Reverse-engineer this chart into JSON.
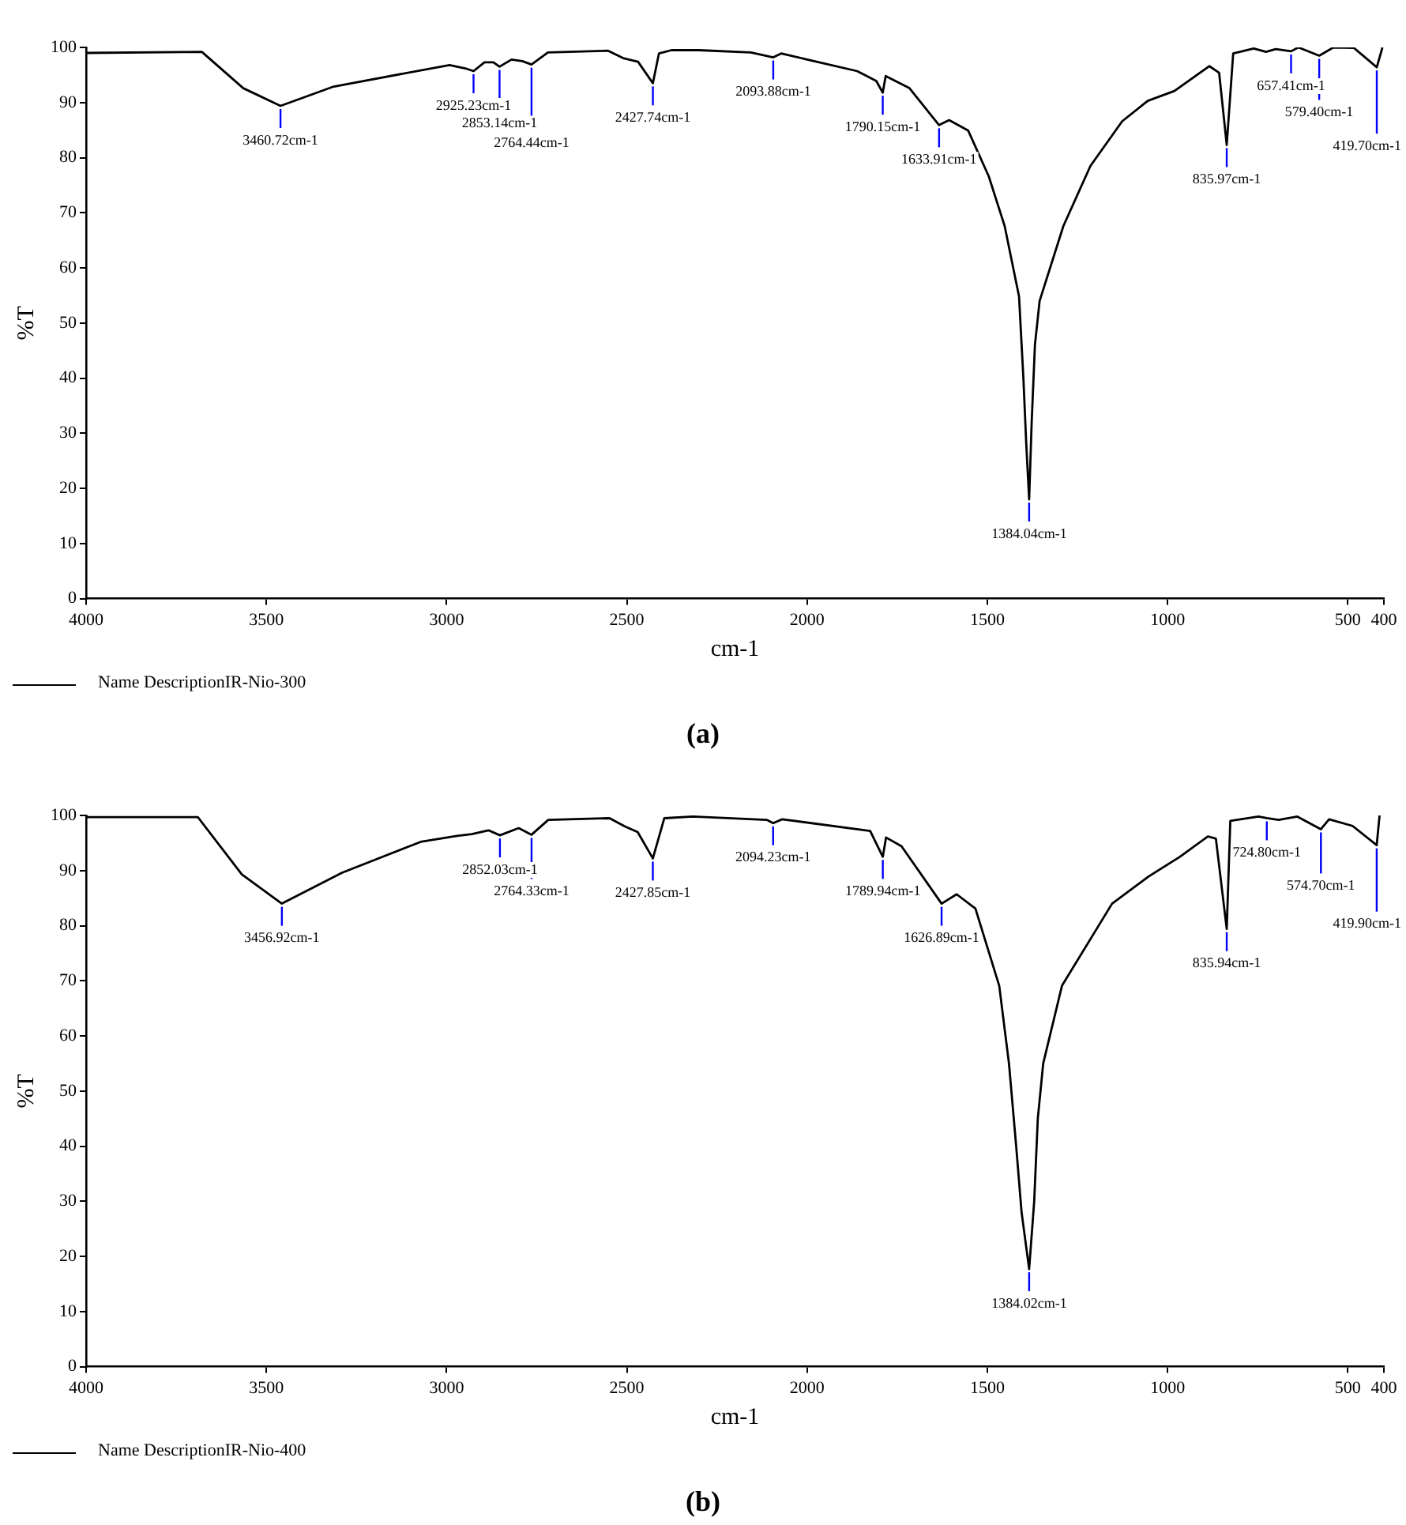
{
  "chart_data": [
    {
      "type": "line",
      "title": "(a)",
      "xlabel": "cm-1",
      "ylabel": "%T",
      "legend": "bottom left",
      "grid": false,
      "xlim": [
        4000,
        400
      ],
      "ylim": [
        0,
        100
      ],
      "xticks": [
        4000,
        3500,
        3000,
        2500,
        2000,
        1500,
        1000,
        500,
        400
      ],
      "yticks": [
        0,
        10,
        20,
        30,
        40,
        50,
        60,
        70,
        80,
        90,
        100
      ],
      "x": [
        4000,
        3679,
        3564,
        3460.72,
        3313,
        2992,
        2948,
        2925.23,
        2895,
        2870,
        2853.14,
        2820,
        2790,
        2764.44,
        2719,
        2552,
        2508,
        2469,
        2427.74,
        2411,
        2376,
        2301,
        2156,
        2093.88,
        2072,
        1861,
        1808,
        1790.15,
        1782,
        1716,
        1633.91,
        1606,
        1553,
        1496,
        1452,
        1412,
        1400,
        1392,
        1384.04,
        1377,
        1368,
        1355,
        1289,
        1214,
        1126,
        1055,
        981,
        884,
        857,
        835.97,
        818,
        761,
        727,
        700,
        657.41,
        637,
        579.4,
        540,
        483,
        419.7,
        404
      ],
      "series": [
        {
          "name": "Name DescriptionIR-Nio-300",
          "color": "#000000",
          "values": [
            99,
            99.2,
            92.6,
            89.4,
            92.9,
            96.8,
            96.2,
            95.7,
            97.3,
            97.3,
            96.5,
            97.8,
            97.5,
            96.9,
            99.1,
            99.4,
            98.0,
            97.4,
            93.5,
            98.9,
            99.5,
            99.5,
            99.1,
            98.2,
            98.9,
            95.7,
            93.9,
            91.8,
            94.8,
            92.6,
            85.9,
            86.8,
            84.9,
            76.6,
            67.6,
            54.8,
            40,
            28,
            18,
            32,
            46,
            54,
            67.6,
            78.5,
            86.6,
            90.3,
            92.1,
            96.6,
            95.4,
            82.3,
            98.9,
            99.8,
            99.2,
            99.7,
            99.3,
            100,
            98.5,
            100,
            99.9,
            96.4,
            100
          ]
        }
      ],
      "annotations": [
        {
          "text": "3460.72cm-1",
          "x": 3460.72,
          "y": 89.4
        },
        {
          "text": "2925.23cm-1",
          "x": 2925.23,
          "y": 95.7
        },
        {
          "text": "2764.44cm-1",
          "x": 2764.44,
          "y": 96.9
        },
        {
          "text": "2853.14cm-1",
          "x": 2853.14,
          "y": 96.5
        },
        {
          "text": "2427.74cm-1",
          "x": 2427.74,
          "y": 93.5
        },
        {
          "text": "2093.88cm-1",
          "x": 2093.88,
          "y": 98.2
        },
        {
          "text": "1790.15cm-1",
          "x": 1790.15,
          "y": 91.8
        },
        {
          "text": "1633.91cm-1",
          "x": 1633.91,
          "y": 85.9
        },
        {
          "text": "1384.04cm-1",
          "x": 1384.04,
          "y": 18
        },
        {
          "text": "835.97cm-1",
          "x": 835.97,
          "y": 82.3
        },
        {
          "text": "657.41cm-1",
          "x": 657.41,
          "y": 99.3
        },
        {
          "text": "579.40cm-1",
          "x": 579.4,
          "y": 98.5
        },
        {
          "text": "419.70cm-1",
          "x": 419.7,
          "y": 96.4
        }
      ]
    },
    {
      "type": "line",
      "title": "(b)",
      "xlabel": "cm-1",
      "ylabel": "%T",
      "legend": "bottom left",
      "grid": false,
      "xlim": [
        4000,
        400
      ],
      "ylim": [
        0,
        100
      ],
      "xticks": [
        4000,
        3500,
        3000,
        2500,
        2000,
        1500,
        1000,
        500,
        400
      ],
      "yticks": [
        0,
        10,
        20,
        30,
        40,
        50,
        60,
        70,
        80,
        90,
        100
      ],
      "x": [
        4000,
        3690,
        3568,
        3456.92,
        3290,
        3072,
        2971,
        2930,
        2884,
        2852.03,
        2800,
        2764.33,
        2718,
        2548,
        2505,
        2470,
        2427.85,
        2396,
        2317,
        2112,
        2094.23,
        2069,
        1825,
        1789.94,
        1781,
        1738,
        1626.89,
        1585,
        1533,
        1467,
        1440,
        1420,
        1405,
        1384.02,
        1370,
        1360,
        1345,
        1293,
        1154,
        1053,
        966,
        888,
        866,
        835.94,
        826,
        748,
        724.8,
        692,
        640,
        574.7,
        552,
        487,
        419.9,
        412
      ],
      "series": [
        {
          "name": "Name DescriptionIR-Nio-400",
          "color": "#000000",
          "values": [
            99.7,
            99.7,
            89.3,
            84.0,
            89.6,
            95.2,
            96.3,
            96.6,
            97.3,
            96.4,
            97.7,
            96.5,
            99.2,
            99.5,
            98.0,
            97.0,
            92.2,
            99.5,
            99.8,
            99.2,
            98.6,
            99.3,
            97.2,
            92.5,
            96.0,
            94.4,
            84.0,
            85.7,
            83.1,
            69.1,
            55,
            40,
            28,
            17.7,
            30,
            45,
            55,
            69.1,
            84.0,
            88.9,
            92.5,
            96.2,
            95.8,
            79.4,
            99.0,
            99.8,
            99.5,
            99.2,
            99.8,
            97.5,
            99.3,
            98.1,
            94.6,
            100
          ]
        }
      ],
      "annotations": [
        {
          "text": "3456.92cm-1",
          "x": 3456.92,
          "y": 84.0
        },
        {
          "text": "2852.03cm-1",
          "x": 2852.03,
          "y": 96.4
        },
        {
          "text": "2764.33cm-1",
          "x": 2764.33,
          "y": 96.5
        },
        {
          "text": "2427.85cm-1",
          "x": 2427.85,
          "y": 92.2
        },
        {
          "text": "2094.23cm-1",
          "x": 2094.23,
          "y": 98.6
        },
        {
          "text": "1789.94cm-1",
          "x": 1789.94,
          "y": 92.5
        },
        {
          "text": "1626.89cm-1",
          "x": 1626.89,
          "y": 84.0
        },
        {
          "text": "1384.02cm-1",
          "x": 1384.02,
          "y": 17.7
        },
        {
          "text": "835.94cm-1",
          "x": 835.94,
          "y": 79.4
        },
        {
          "text": "724.80cm-1",
          "x": 724.8,
          "y": 99.5
        },
        {
          "text": "574.70cm-1",
          "x": 574.7,
          "y": 97.5
        },
        {
          "text": "419.90cm-1",
          "x": 419.9,
          "y": 94.6
        }
      ]
    }
  ]
}
